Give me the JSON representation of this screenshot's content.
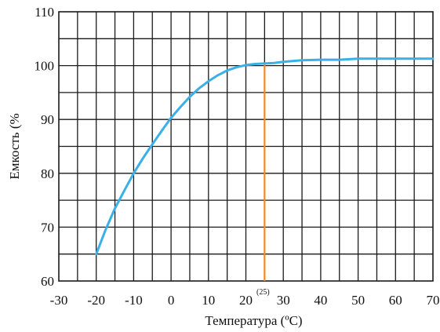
{
  "chart_data": {
    "type": "line",
    "xlabel": "Температура (ºC)",
    "ylabel": "Емкость (%",
    "xlim": [
      -30,
      70
    ],
    "ylim": [
      60,
      110
    ],
    "x_ticks": [
      -30,
      -20,
      -10,
      0,
      10,
      20,
      30,
      40,
      50,
      60,
      70
    ],
    "y_ticks": [
      60,
      70,
      80,
      90,
      100,
      110
    ],
    "x_tick_labels": [
      "-30",
      "-20",
      "-10",
      "0",
      "10",
      "20",
      "30",
      "40",
      "50",
      "60",
      "70"
    ],
    "y_tick_labels": [
      "60",
      "70",
      "80",
      "90",
      "100",
      "110"
    ],
    "grid": true,
    "grid_x_step": 5,
    "grid_y_step": 5,
    "series": [
      {
        "color": "#3ab0e8",
        "x": [
          -20,
          -17.5,
          -15,
          -12.5,
          -10,
          -7.5,
          -5,
          -2.5,
          0,
          2.5,
          5,
          7.5,
          10,
          12.5,
          15,
          17.5,
          20,
          22.5,
          25,
          27.5,
          30,
          35,
          40,
          45,
          50,
          55,
          60,
          65,
          70
        ],
        "y": [
          65,
          69.5,
          73.5,
          76.8,
          80,
          82.8,
          85.4,
          87.9,
          90.3,
          92.3,
          94.2,
          95.8,
          97.1,
          98.2,
          99.1,
          99.7,
          100.1,
          100.3,
          100.4,
          100.5,
          100.7,
          101,
          101.1,
          101.1,
          101.3,
          101.3,
          101.3,
          101.3,
          101.3
        ]
      }
    ],
    "annotations": [
      {
        "text": "(25)",
        "x": 25,
        "color": "#f28a1e",
        "marker_line_to_y": 100.4
      }
    ]
  }
}
